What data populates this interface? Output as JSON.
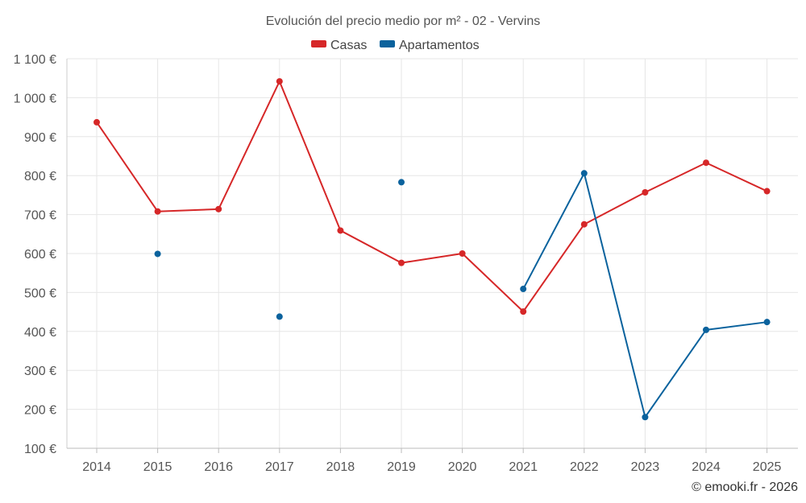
{
  "chart_data": {
    "type": "line",
    "title": "Evolución del precio medio por m² - 02 - Vervins",
    "categories": [
      "2014",
      "2015",
      "2016",
      "2017",
      "2018",
      "2019",
      "2020",
      "2021",
      "2022",
      "2023",
      "2024",
      "2025"
    ],
    "series": [
      {
        "name": "Casas",
        "color": "#d62728",
        "values": [
          937,
          708,
          714,
          1042,
          659,
          576,
          600,
          451,
          675,
          757,
          833,
          760
        ]
      },
      {
        "name": "Apartamentos",
        "color": "#0a629d",
        "values": [
          null,
          599,
          null,
          438,
          null,
          783,
          null,
          509,
          806,
          180,
          404,
          424
        ]
      }
    ],
    "y_ticks": [
      100,
      200,
      300,
      400,
      500,
      600,
      700,
      800,
      900,
      1000,
      1100
    ],
    "y_tick_labels": [
      "100 €",
      "200 €",
      "300 €",
      "400 €",
      "500 €",
      "600 €",
      "700 €",
      "800 €",
      "900 €",
      "1 000 €",
      "1 100 €"
    ],
    "ylim": [
      100,
      1100
    ],
    "legend_position": "top-center",
    "grid": true,
    "xlabel": "",
    "ylabel": ""
  },
  "credit": "© emooki.fr - 2026"
}
